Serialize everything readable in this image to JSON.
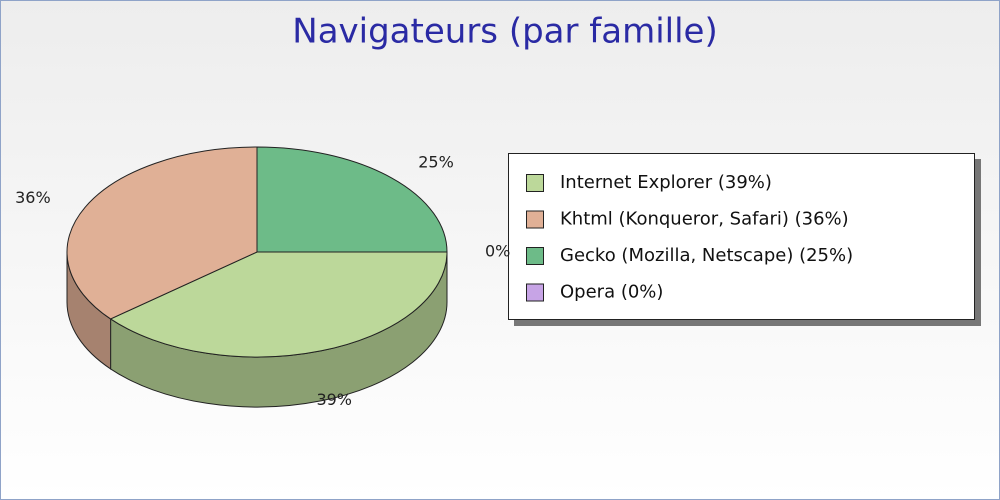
{
  "chart_data": {
    "type": "pie",
    "title": "Navigateurs (par famille)",
    "categories": [
      "Internet Explorer (39%)",
      "Khtml (Konqueror, Safari) (36%)",
      "Gecko (Mozilla, Netscape) (25%)",
      "Opera (0%)"
    ],
    "values": [
      39,
      36,
      25,
      0
    ],
    "value_labels": [
      "39%",
      "36%",
      "25%",
      "0%"
    ],
    "colors": [
      "#bcd89a",
      "#e0b096",
      "#6dbb88",
      "#c7a4e6"
    ],
    "legend": "right"
  }
}
